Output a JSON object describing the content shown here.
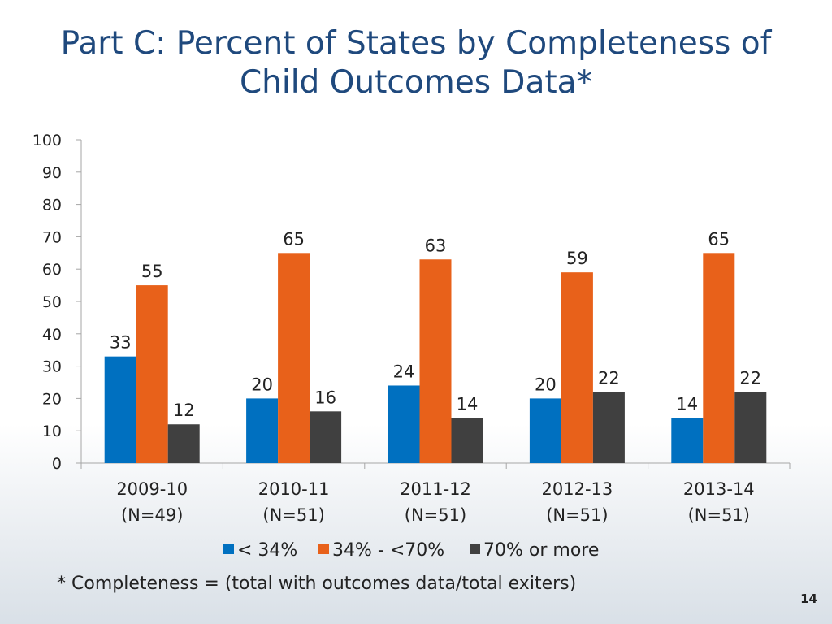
{
  "slide": {
    "title": "Part C: Percent of States by Completeness of Child Outcomes Data*",
    "footnote": "* Completeness = (total with outcomes data/total exiters)",
    "page_number": "14"
  },
  "colors": {
    "title": "#1f497d",
    "series": [
      "#0070c0",
      "#e8611a",
      "#404040"
    ]
  },
  "chart_data": {
    "type": "bar",
    "title": "",
    "xlabel": "",
    "ylabel": "",
    "ylim": [
      0,
      100
    ],
    "yticks": [
      0,
      10,
      20,
      30,
      40,
      50,
      60,
      70,
      80,
      90,
      100
    ],
    "ytick_labels": [
      "0",
      "10",
      "20",
      "30",
      "40",
      "50",
      "60",
      "70",
      "80",
      "90",
      "100"
    ],
    "categories": [
      "2009-10 (N=49)",
      "2010-11 (N=51)",
      "2011-12 (N=51)",
      "2012-13 (N=51)",
      "2013-14 (N=51)"
    ],
    "category_lines": [
      [
        "2009-10",
        "(N=49)"
      ],
      [
        "2010-11",
        "(N=51)"
      ],
      [
        "2011-12",
        "(N=51)"
      ],
      [
        "2012-13",
        "(N=51)"
      ],
      [
        "2013-14",
        "(N=51)"
      ]
    ],
    "series": [
      {
        "name": "< 34%",
        "values": [
          33,
          20,
          24,
          20,
          14
        ]
      },
      {
        "name": "34% - <70%",
        "values": [
          55,
          65,
          63,
          59,
          65
        ]
      },
      {
        "name": "70% or more",
        "values": [
          12,
          16,
          14,
          22,
          22
        ]
      }
    ],
    "legend_position": "bottom",
    "grid": false
  }
}
